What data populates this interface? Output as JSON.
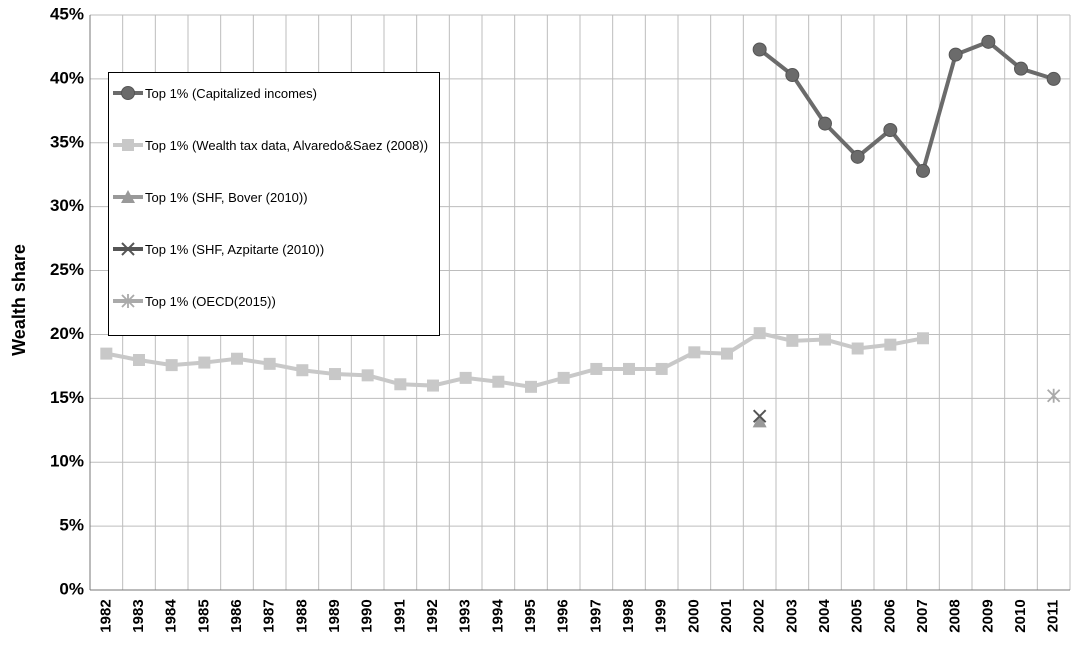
{
  "chart_data": {
    "type": "line",
    "y_label": "Wealth share",
    "categories": [
      "1982",
      "1983",
      "1984",
      "1985",
      "1986",
      "1987",
      "1988",
      "1989",
      "1990",
      "1991",
      "1992",
      "1993",
      "1994",
      "1995",
      "1996",
      "1997",
      "1998",
      "1999",
      "2000",
      "2001",
      "2002",
      "2003",
      "2004",
      "2005",
      "2006",
      "2007",
      "2008",
      "2009",
      "2010",
      "2011"
    ],
    "series": [
      {
        "name": "Top 1% (Capitalized incomes)",
        "color": "#6b6b6b",
        "marker": "circle",
        "values": [
          null,
          null,
          null,
          null,
          null,
          null,
          null,
          null,
          null,
          null,
          null,
          null,
          null,
          null,
          null,
          null,
          null,
          null,
          null,
          null,
          42.3,
          40.3,
          36.5,
          33.9,
          36.0,
          32.8,
          41.9,
          42.9,
          40.8,
          40.0
        ]
      },
      {
        "name": "Top 1% (Wealth tax data, Alvaredo&Saez (2008))",
        "color": "#c8c8c8",
        "marker": "square",
        "values": [
          18.5,
          18.0,
          17.6,
          17.8,
          18.1,
          17.7,
          17.2,
          16.9,
          16.8,
          16.1,
          16.0,
          16.6,
          16.3,
          15.9,
          16.6,
          17.3,
          17.3,
          17.3,
          18.6,
          18.5,
          20.1,
          19.5,
          19.6,
          18.9,
          19.2,
          19.7,
          null,
          null,
          null,
          null
        ]
      },
      {
        "name": "Top 1% (SHF, Bover (2010))",
        "color": "#999999",
        "marker": "triangle",
        "values": [
          null,
          null,
          null,
          null,
          null,
          null,
          null,
          null,
          null,
          null,
          null,
          null,
          null,
          null,
          null,
          null,
          null,
          null,
          null,
          null,
          13.2,
          null,
          null,
          null,
          null,
          null,
          null,
          null,
          null,
          null
        ]
      },
      {
        "name": "Top 1% (SHF, Azpitarte (2010))",
        "color": "#555555",
        "marker": "x",
        "values": [
          null,
          null,
          null,
          null,
          null,
          null,
          null,
          null,
          null,
          null,
          null,
          null,
          null,
          null,
          null,
          null,
          null,
          null,
          null,
          null,
          13.6,
          null,
          null,
          null,
          null,
          null,
          null,
          null,
          null,
          null
        ]
      },
      {
        "name": "Top 1% (OECD(2015))",
        "color": "#aaaaaa",
        "marker": "star",
        "values": [
          null,
          null,
          null,
          null,
          null,
          null,
          null,
          null,
          null,
          null,
          null,
          null,
          null,
          null,
          null,
          null,
          null,
          null,
          null,
          null,
          null,
          null,
          null,
          null,
          null,
          null,
          null,
          null,
          null,
          15.2
        ]
      }
    ],
    "ylim": [
      0,
      45
    ],
    "yticks": [
      {
        "value": 0,
        "label": "0%"
      },
      {
        "value": 5,
        "label": "5%"
      },
      {
        "value": 10,
        "label": "10%"
      },
      {
        "value": 15,
        "label": "15%"
      },
      {
        "value": 20,
        "label": "20%"
      },
      {
        "value": 25,
        "label": "25%"
      },
      {
        "value": 30,
        "label": "30%"
      },
      {
        "value": 35,
        "label": "35%"
      },
      {
        "value": 40,
        "label": "40%"
      },
      {
        "value": 45,
        "label": "45%"
      }
    ],
    "grid": true
  }
}
